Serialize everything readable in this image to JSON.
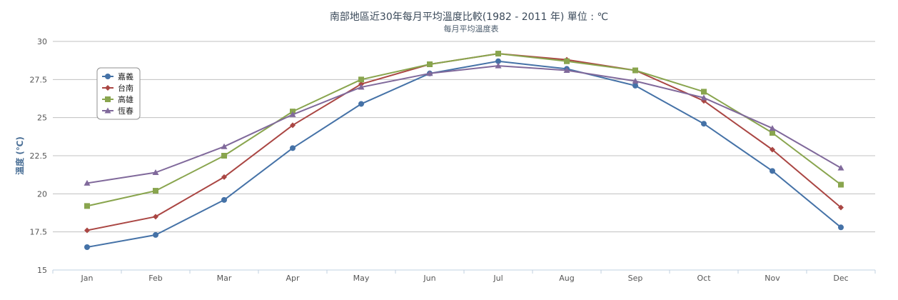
{
  "chart_data": {
    "type": "line",
    "title": "南部地區近30年每月平均溫度比較(1982 - 2011 年)     單位 : ℃",
    "subtitle": "每月平均溫度表",
    "ylabel": "溫度 (℃)",
    "xlabel": "",
    "categories": [
      "Jan",
      "Feb",
      "Mar",
      "Apr",
      "May",
      "Jun",
      "Jul",
      "Aug",
      "Sep",
      "Oct",
      "Nov",
      "Dec"
    ],
    "ylim": [
      15,
      30
    ],
    "yticks": [
      15,
      17.5,
      20,
      22.5,
      25,
      27.5,
      30
    ],
    "ytick_labels": [
      "15",
      "17.5",
      "20",
      "22.5",
      "25",
      "27.5",
      "30"
    ],
    "grid": true,
    "legend_position": "top-left",
    "series": [
      {
        "name": "嘉義",
        "color": "#4572a7",
        "marker": "circle",
        "values": [
          16.5,
          17.3,
          19.6,
          23.0,
          25.9,
          27.9,
          28.7,
          28.2,
          27.1,
          24.6,
          21.5,
          17.8
        ]
      },
      {
        "name": "台南",
        "color": "#aa4643",
        "marker": "diamond",
        "values": [
          17.6,
          18.5,
          21.1,
          24.5,
          27.2,
          28.5,
          29.2,
          28.8,
          28.1,
          26.1,
          22.9,
          19.1
        ]
      },
      {
        "name": "高雄",
        "color": "#89a54e",
        "marker": "square",
        "values": [
          19.2,
          20.2,
          22.5,
          25.4,
          27.5,
          28.5,
          29.2,
          28.7,
          28.1,
          26.7,
          24.0,
          20.6
        ]
      },
      {
        "name": "恆春",
        "color": "#80699b",
        "marker": "triangle",
        "values": [
          20.7,
          21.4,
          23.1,
          25.2,
          27.0,
          27.9,
          28.4,
          28.1,
          27.4,
          26.3,
          24.3,
          21.7
        ]
      }
    ]
  }
}
